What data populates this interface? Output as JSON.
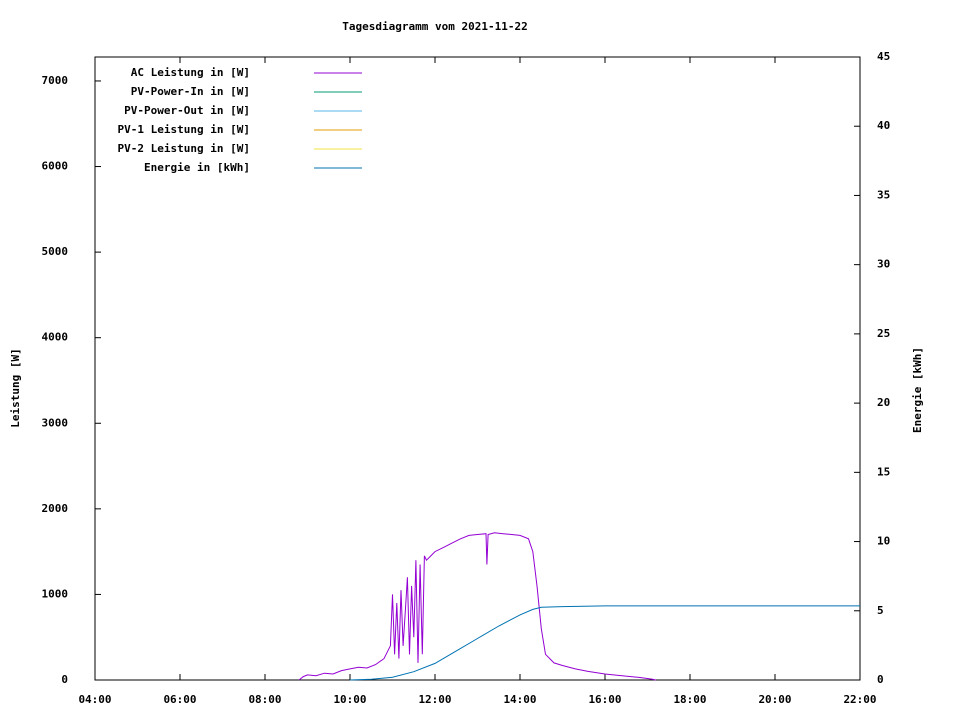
{
  "chart_data": {
    "type": "line",
    "title": "Tagesdiagramm vom 2021-11-22",
    "ylabel": "Leistung [W]",
    "y2label": "Energie [kWh]",
    "xlim": [
      4,
      22
    ],
    "xticks": [
      {
        "value": 4,
        "label": "04:00"
      },
      {
        "value": 6,
        "label": "06:00"
      },
      {
        "value": 8,
        "label": "08:00"
      },
      {
        "value": 10,
        "label": "10:00"
      },
      {
        "value": 12,
        "label": "12:00"
      },
      {
        "value": 14,
        "label": "14:00"
      },
      {
        "value": 16,
        "label": "16:00"
      },
      {
        "value": 18,
        "label": "18:00"
      },
      {
        "value": 20,
        "label": "20:00"
      },
      {
        "value": 22,
        "label": "22:00"
      }
    ],
    "ylim": [
      0,
      7280
    ],
    "yticks": [
      0,
      1000,
      2000,
      3000,
      4000,
      5000,
      6000,
      7000
    ],
    "y2lim": [
      0,
      45
    ],
    "y2ticks": [
      0,
      5,
      10,
      15,
      20,
      25,
      30,
      35,
      40,
      45
    ],
    "legend": "top-left",
    "series": [
      {
        "name": "AC Leistung in [W]",
        "color": "#9400d3",
        "x": [
          8.8,
          8.9,
          9.0,
          9.2,
          9.4,
          9.6,
          9.8,
          10.0,
          10.2,
          10.4,
          10.6,
          10.8,
          10.95,
          11.0,
          11.05,
          11.1,
          11.15,
          11.2,
          11.25,
          11.3,
          11.35,
          11.4,
          11.45,
          11.5,
          11.55,
          11.6,
          11.65,
          11.7,
          11.75,
          11.8,
          11.9,
          12.0,
          12.2,
          12.4,
          12.6,
          12.8,
          13.0,
          13.2,
          13.22,
          13.25,
          13.4,
          13.6,
          13.8,
          14.0,
          14.2,
          14.3,
          14.4,
          14.5,
          14.6,
          14.8,
          15.0,
          15.3,
          15.6,
          16.0,
          16.4,
          16.8,
          17.1,
          17.2
        ],
        "values": [
          0,
          40,
          60,
          50,
          80,
          70,
          110,
          130,
          150,
          140,
          180,
          250,
          400,
          1000,
          300,
          900,
          250,
          1050,
          400,
          800,
          1200,
          300,
          1100,
          500,
          1400,
          200,
          1350,
          300,
          1450,
          1400,
          1450,
          1500,
          1550,
          1600,
          1650,
          1690,
          1700,
          1710,
          1350,
          1700,
          1720,
          1710,
          1700,
          1690,
          1650,
          1500,
          1100,
          600,
          300,
          200,
          170,
          130,
          100,
          70,
          50,
          30,
          10,
          0
        ]
      },
      {
        "name": "PV-Power-In in [W]",
        "color": "#009e73",
        "x": [],
        "values": []
      },
      {
        "name": "PV-Power-Out in [W]",
        "color": "#56b4e9",
        "x": [],
        "values": []
      },
      {
        "name": "PV-1 Leistung in [W]",
        "color": "#e69f00",
        "x": [],
        "values": []
      },
      {
        "name": "PV-2 Leistung in [W]",
        "color": "#f0e442",
        "x": [],
        "values": []
      },
      {
        "name": "Energie in [kWh]",
        "color": "#0072b2",
        "axis": "y2",
        "x": [
          10.0,
          10.5,
          11.0,
          11.5,
          12.0,
          12.5,
          13.0,
          13.5,
          14.0,
          14.3,
          14.5,
          15.0,
          16.0,
          18.0,
          22.0
        ],
        "values": [
          0,
          0.05,
          0.2,
          0.6,
          1.2,
          2.1,
          3.0,
          3.9,
          4.7,
          5.1,
          5.25,
          5.3,
          5.35,
          5.35,
          5.35
        ]
      }
    ]
  }
}
